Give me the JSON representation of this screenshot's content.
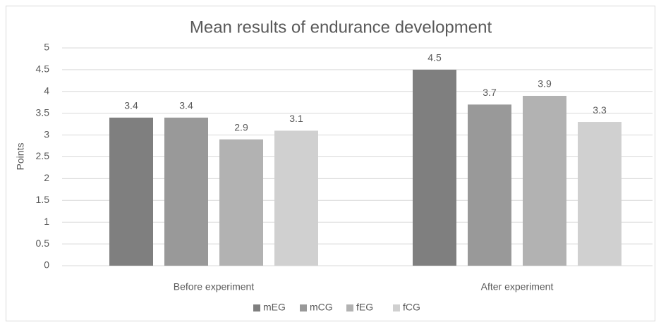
{
  "chart_data": {
    "type": "bar",
    "title": "Mean results of endurance development",
    "y_label": "Points",
    "categories": [
      "Before experiment",
      "After experiment"
    ],
    "series": [
      {
        "name": "mEG",
        "color": "#7f7f7f",
        "values": [
          3.4,
          4.5
        ]
      },
      {
        "name": "mCG",
        "color": "#999999",
        "values": [
          3.4,
          3.7
        ]
      },
      {
        "name": "fEG",
        "color": "#b2b2b2",
        "values": [
          2.9,
          3.9
        ]
      },
      {
        "name": "fCG",
        "color": "#d0d0d0",
        "values": [
          3.1,
          3.3
        ]
      }
    ],
    "ylim": [
      0,
      5
    ],
    "yticks": [
      0,
      0.5,
      1,
      1.5,
      2,
      2.5,
      3,
      3.5,
      4,
      4.5,
      5
    ],
    "grid": true,
    "legend": "bottom"
  }
}
